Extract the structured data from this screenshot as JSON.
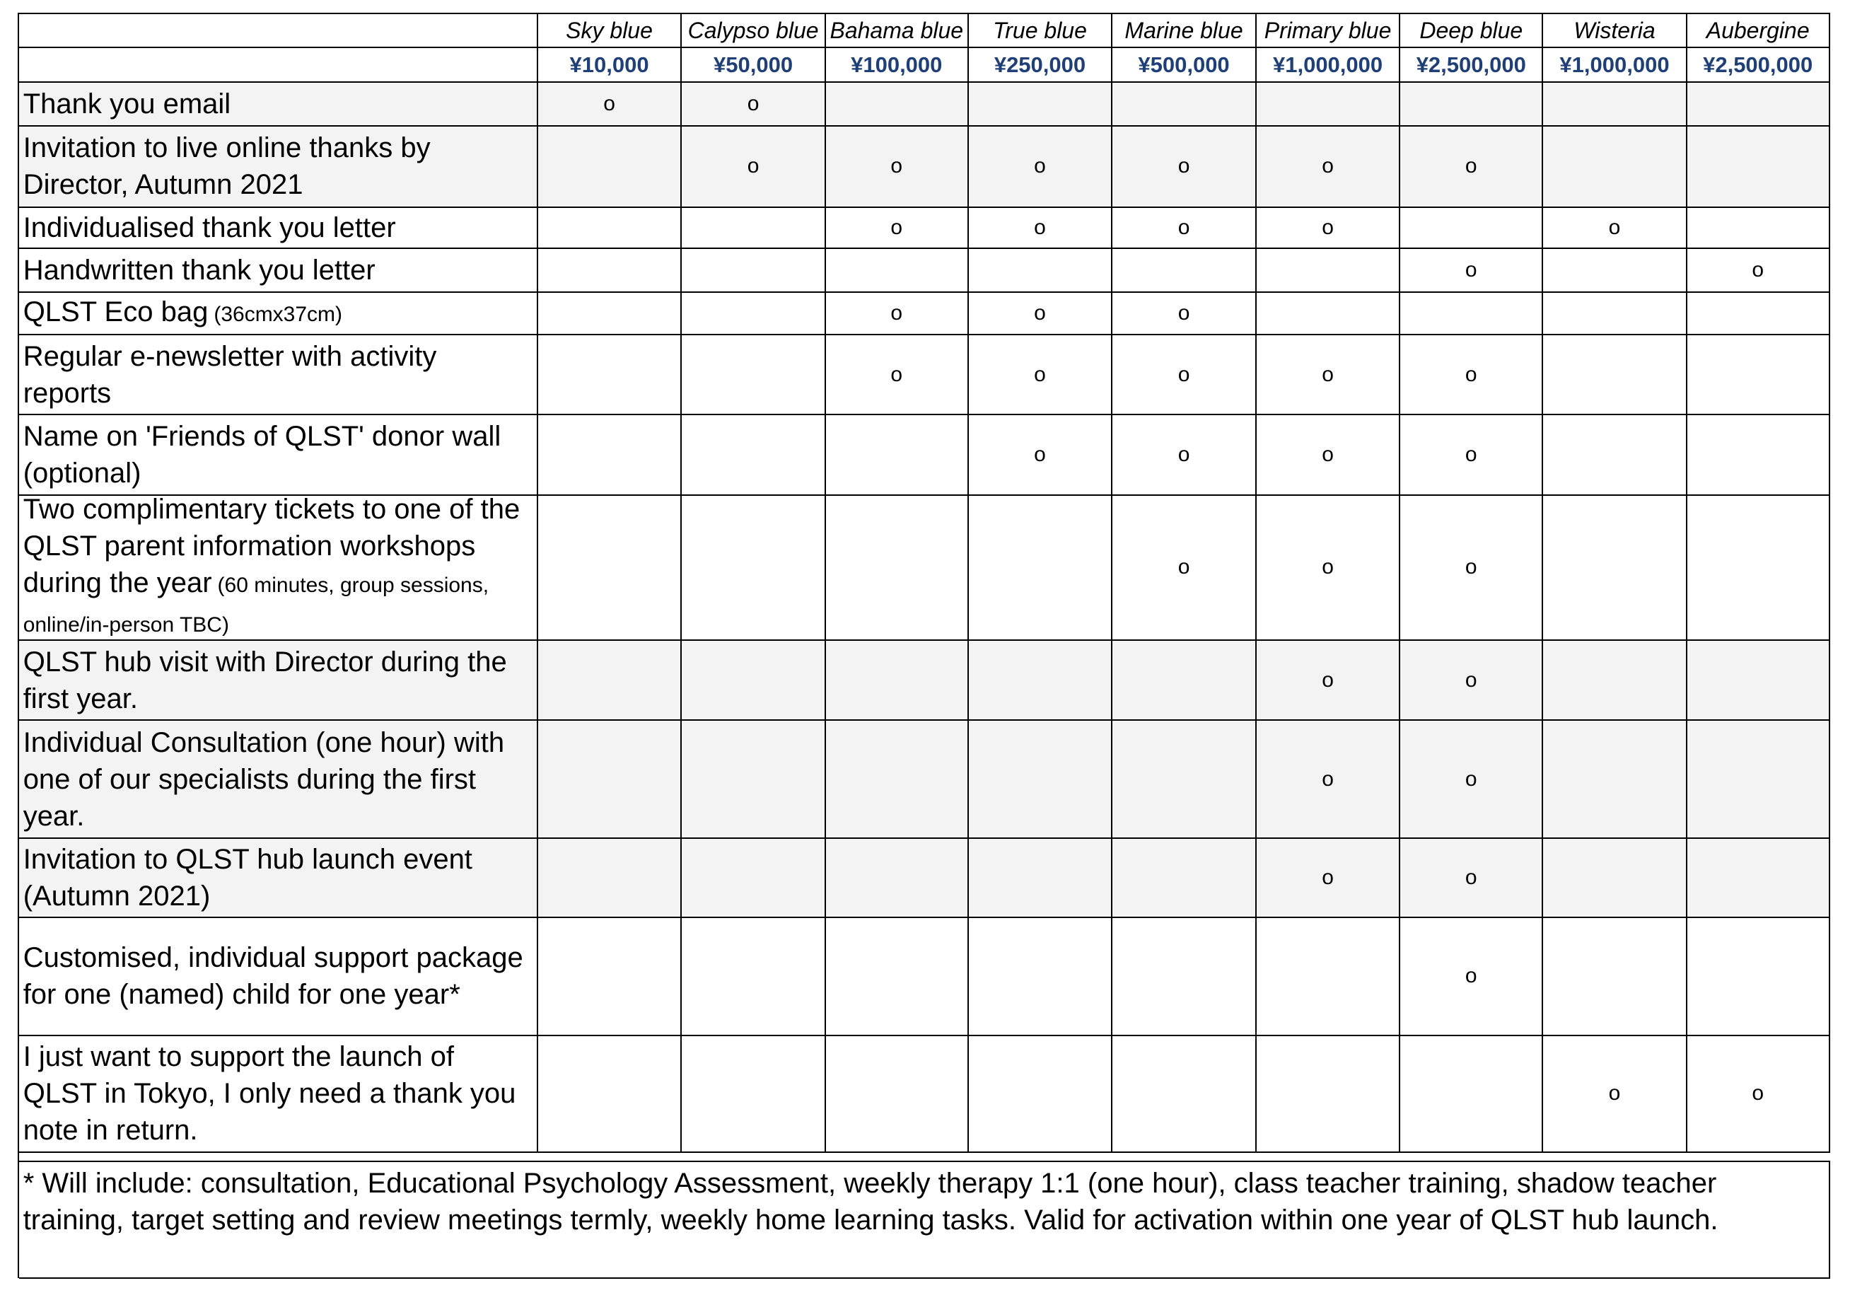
{
  "tiers": [
    {
      "name": "Sky blue",
      "price": "¥10,000"
    },
    {
      "name": "Calypso blue",
      "price": "¥50,000"
    },
    {
      "name": "Bahama blue",
      "price": "¥100,000"
    },
    {
      "name": "True blue",
      "price": "¥250,000"
    },
    {
      "name": "Marine blue",
      "price": "¥500,000"
    },
    {
      "name": "Primary blue",
      "price": "¥1,000,000"
    },
    {
      "name": "Deep blue",
      "price": "¥2,500,000"
    },
    {
      "name": "Wisteria",
      "price": "¥1,000,000"
    },
    {
      "name": "Aubergine",
      "price": "¥2,500,000"
    }
  ],
  "rows": [
    {
      "label": "Thank you email",
      "cells": [
        "o",
        "o",
        null,
        null,
        null,
        null,
        null,
        null,
        null
      ]
    },
    {
      "label": "Invitation to live online thanks by Director, Autumn 2021",
      "cells": [
        null,
        "o",
        "o",
        "o",
        "o",
        "o",
        "o",
        null,
        null
      ]
    },
    {
      "label": "Individualised thank you letter",
      "cells": [
        null,
        null,
        "o",
        "o",
        "o",
        "o",
        null,
        "o",
        null
      ]
    },
    {
      "label": "Handwritten thank you letter",
      "cells": [
        null,
        null,
        null,
        null,
        null,
        null,
        "o",
        null,
        "o"
      ]
    },
    {
      "label": "QLST Eco bag",
      "label_small": "(36cmx37cm)",
      "cells": [
        null,
        null,
        "o",
        "o",
        "o",
        null,
        null,
        null,
        null
      ]
    },
    {
      "label": "Regular e-newsletter with activity reports",
      "cells": [
        null,
        null,
        "o",
        "o",
        "o",
        "o",
        "o",
        null,
        null
      ]
    },
    {
      "label": "Name on 'Friends of QLST' donor wall (optional)",
      "cells": [
        null,
        null,
        null,
        "o",
        "o",
        "o",
        "o",
        null,
        null
      ]
    },
    {
      "label": "Two complimentary tickets to one of the QLST parent information workshops during the year",
      "label_small": "(60 minutes, group sessions, online/in-person TBC)",
      "cells": [
        null,
        null,
        null,
        null,
        "o",
        "o",
        "o",
        null,
        null
      ]
    },
    {
      "label": "QLST hub visit with Director during the first year.",
      "cells": [
        null,
        null,
        null,
        null,
        null,
        "o",
        "o",
        null,
        null
      ]
    },
    {
      "label": "Individual Consultation (one hour) with one of our specialists during the first year.",
      "cells": [
        null,
        null,
        null,
        null,
        null,
        "o",
        "o",
        null,
        null
      ]
    },
    {
      "label": "Invitation to QLST hub launch event (Autumn 2021)",
      "cells": [
        null,
        null,
        null,
        null,
        null,
        "o",
        "o",
        null,
        null
      ]
    },
    {
      "label": "Customised, individual support package for one (named) child for one year*",
      "cells": [
        null,
        null,
        null,
        null,
        null,
        null,
        "o",
        null,
        null
      ]
    },
    {
      "label": "I just want to support the launch of QLST in Tokyo, I only need a thank you note in return.",
      "cells": [
        null,
        null,
        null,
        null,
        null,
        null,
        null,
        "o",
        "o"
      ]
    }
  ],
  "footnote": "* Will include: consultation, Educational Psychology Assessment, weekly therapy 1:1 (one hour), class teacher training, shadow teacher training, target setting and review meetings termly, weekly home learning tasks. Valid for activation within one year of QLST hub launch."
}
